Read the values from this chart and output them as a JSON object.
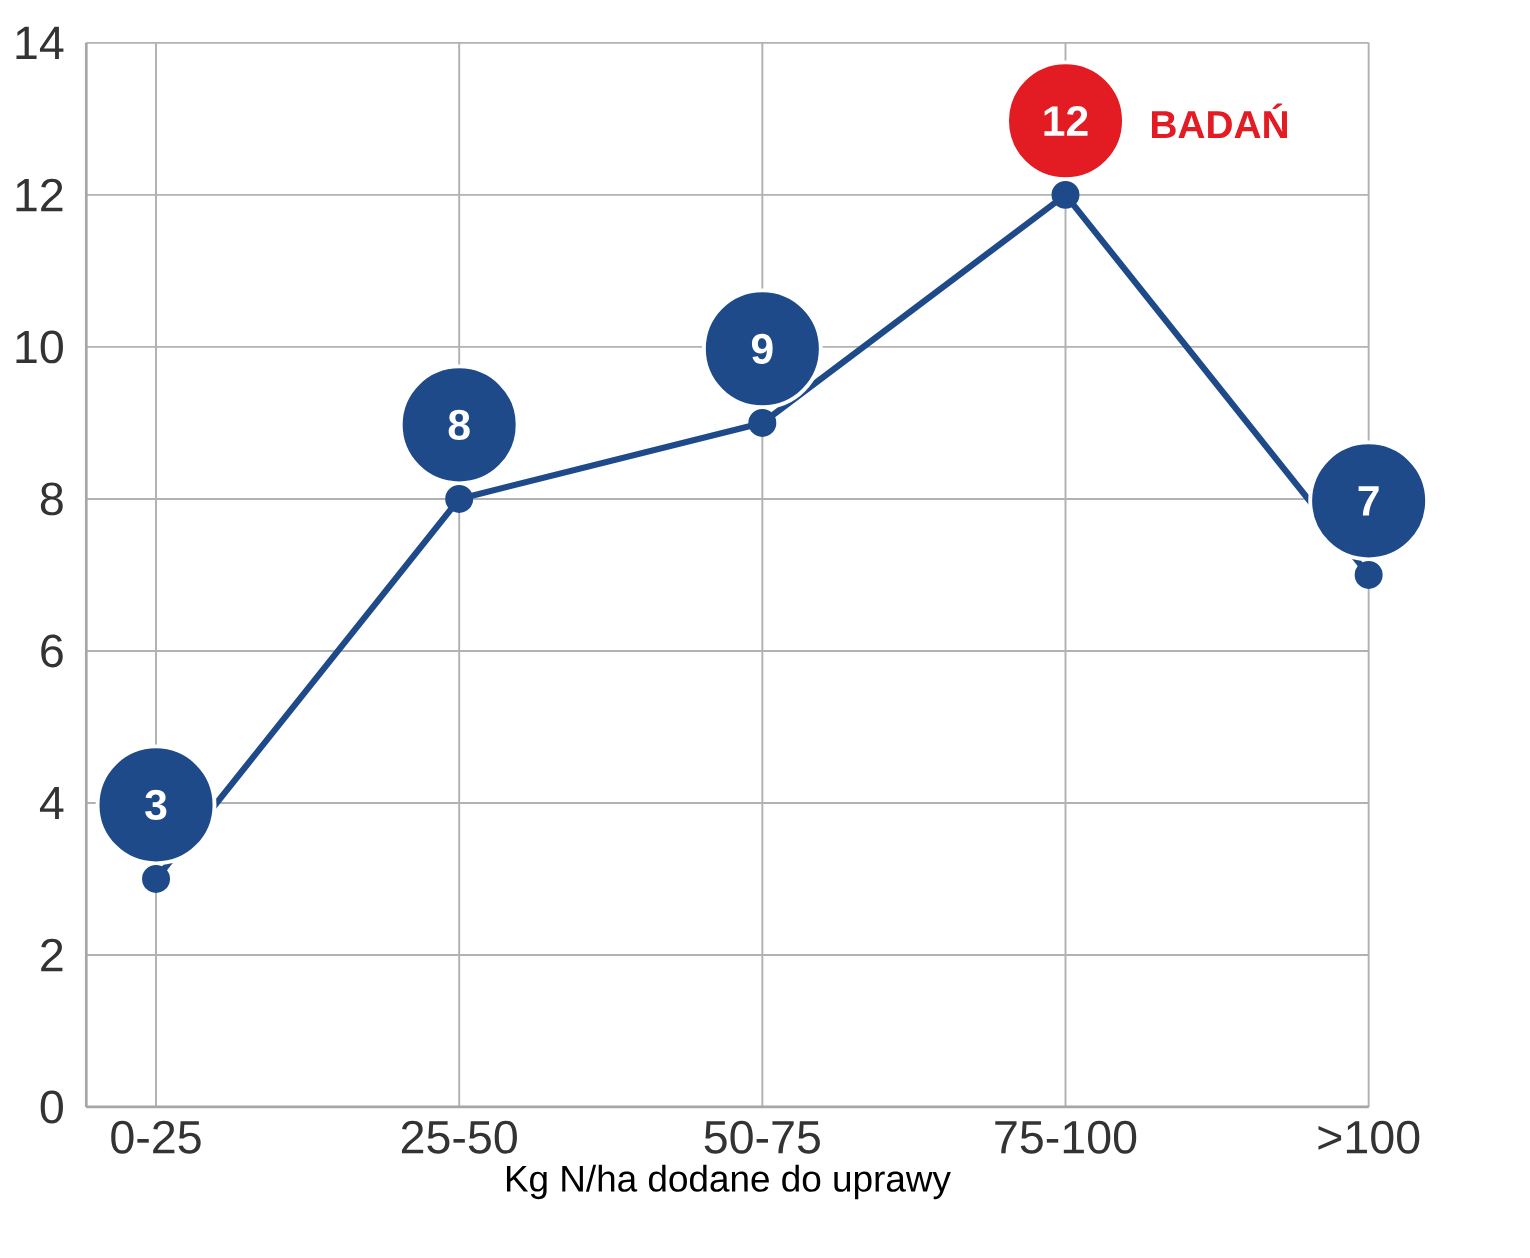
{
  "chart_data": {
    "type": "line",
    "xlabel": "Kg N/ha dodane do uprawy",
    "categories": [
      "0-25",
      "25-50",
      "50-75",
      "75-100",
      ">100"
    ],
    "values": [
      3,
      8,
      9,
      12,
      7
    ],
    "color": "#1f4a8a",
    "colors": [
      "#1f4a8a",
      "#1f4a8a",
      "#1f4a8a",
      "#e31b23",
      "#1f4a8a"
    ],
    "data_labels": true,
    "annotations": [
      {
        "text": "BADAŃ",
        "x": "75-100",
        "y": 12
      }
    ],
    "ylim": [
      0,
      14
    ],
    "yticks": [
      0,
      2,
      4,
      6,
      8,
      10,
      12,
      14
    ],
    "grid": true,
    "marker": "circle",
    "line_style": "solid"
  }
}
